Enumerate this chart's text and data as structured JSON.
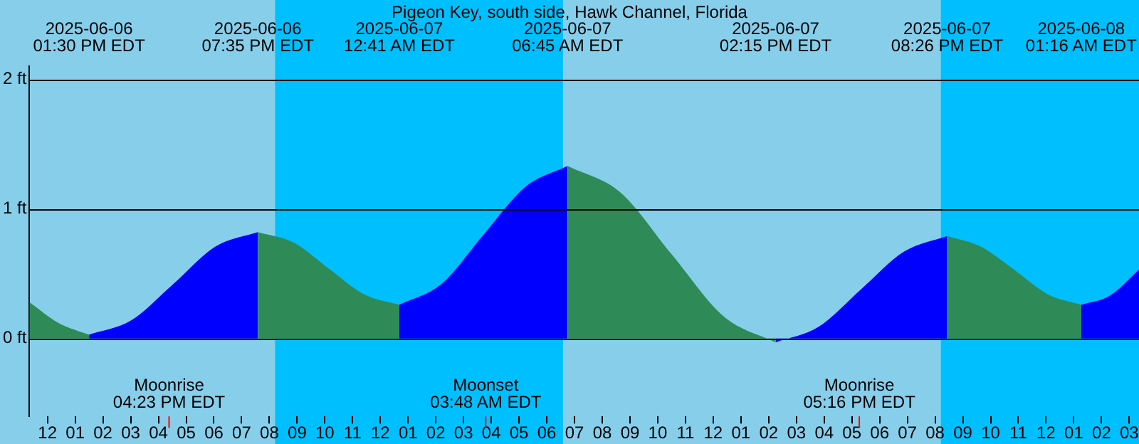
{
  "chart_data": {
    "type": "area",
    "title": "Pigeon Key, south side, Hawk Channel, Florida",
    "xlim": [
      "2025-06-06T11:21",
      "2025-06-08T03:21"
    ],
    "xticks": [
      {
        "value": "2025-06-06T12:00",
        "label": "12"
      },
      {
        "value": "2025-06-06T13:00",
        "label": "01"
      },
      {
        "value": "2025-06-06T14:00",
        "label": "02"
      },
      {
        "value": "2025-06-06T15:00",
        "label": "03"
      },
      {
        "value": "2025-06-06T16:00",
        "label": "04"
      },
      {
        "value": "2025-06-06T17:00",
        "label": "05"
      },
      {
        "value": "2025-06-06T18:00",
        "label": "06"
      },
      {
        "value": "2025-06-06T19:00",
        "label": "07"
      },
      {
        "value": "2025-06-06T20:00",
        "label": "08"
      },
      {
        "value": "2025-06-06T21:00",
        "label": "09"
      },
      {
        "value": "2025-06-06T22:00",
        "label": "10"
      },
      {
        "value": "2025-06-06T23:00",
        "label": "11"
      },
      {
        "value": "2025-06-07T00:00",
        "label": "12"
      },
      {
        "value": "2025-06-07T01:00",
        "label": "01"
      },
      {
        "value": "2025-06-07T02:00",
        "label": "02"
      },
      {
        "value": "2025-06-07T03:00",
        "label": "03"
      },
      {
        "value": "2025-06-07T04:00",
        "label": "04"
      },
      {
        "value": "2025-06-07T05:00",
        "label": "05"
      },
      {
        "value": "2025-06-07T06:00",
        "label": "06"
      },
      {
        "value": "2025-06-07T07:00",
        "label": "07"
      },
      {
        "value": "2025-06-07T08:00",
        "label": "08"
      },
      {
        "value": "2025-06-07T09:00",
        "label": "09"
      },
      {
        "value": "2025-06-07T10:00",
        "label": "10"
      },
      {
        "value": "2025-06-07T11:00",
        "label": "11"
      },
      {
        "value": "2025-06-07T12:00",
        "label": "12"
      },
      {
        "value": "2025-06-07T13:00",
        "label": "01"
      },
      {
        "value": "2025-06-07T14:00",
        "label": "02"
      },
      {
        "value": "2025-06-07T15:00",
        "label": "03"
      },
      {
        "value": "2025-06-07T16:00",
        "label": "04"
      },
      {
        "value": "2025-06-07T17:00",
        "label": "05"
      },
      {
        "value": "2025-06-07T18:00",
        "label": "06"
      },
      {
        "value": "2025-06-07T19:00",
        "label": "07"
      },
      {
        "value": "2025-06-07T20:00",
        "label": "08"
      },
      {
        "value": "2025-06-07T21:00",
        "label": "09"
      },
      {
        "value": "2025-06-07T22:00",
        "label": "10"
      },
      {
        "value": "2025-06-07T23:00",
        "label": "11"
      },
      {
        "value": "2025-06-08T00:00",
        "label": "12"
      },
      {
        "value": "2025-06-08T01:00",
        "label": "01"
      },
      {
        "value": "2025-06-08T02:00",
        "label": "02"
      },
      {
        "value": "2025-06-08T03:00",
        "label": "03"
      }
    ],
    "ylim": [
      -0.6,
      2.1
    ],
    "yticks": [
      {
        "value": 0,
        "label": "0 ft"
      },
      {
        "value": 1,
        "label": "1 ft"
      },
      {
        "value": 2,
        "label": "2 ft"
      }
    ],
    "grid": "y",
    "bands": [
      {
        "axis": "x",
        "from": "2025-06-06T11:21",
        "to": "2025-06-06T20:12",
        "color": "#87ceeb"
      },
      {
        "axis": "x",
        "from": "2025-06-06T20:12",
        "to": "2025-06-07T06:36",
        "color": "#00bfff"
      },
      {
        "axis": "x",
        "from": "2025-06-07T06:36",
        "to": "2025-06-07T20:12",
        "color": "#87ceeb"
      },
      {
        "axis": "x",
        "from": "2025-06-07T20:12",
        "to": "2025-06-08T03:21",
        "color": "#00bfff"
      }
    ],
    "ref_lines": [
      {
        "axis": "x",
        "value": "2025-06-06T16:23",
        "label": "Moonrise\n04:23 PM EDT",
        "color": "#ff0000"
      },
      {
        "axis": "x",
        "value": "2025-06-07T03:48",
        "label": "Moonset\n03:48 AM EDT",
        "color": "#ff0000"
      },
      {
        "axis": "x",
        "value": "2025-06-07T17:16",
        "label": "Moonrise\n05:16 PM EDT",
        "color": "#ff0000"
      }
    ],
    "series": [
      {
        "color": "#2e8b57",
        "x": [
          "2025-06-06T11:21",
          "2025-06-06T12:24",
          "2025-06-06T13:30"
        ],
        "values": [
          0.28,
          0.12,
          0.03
        ]
      },
      {
        "color": "#0000ff",
        "x": [
          "2025-06-06T13:30",
          "2025-06-06T15:01",
          "2025-06-06T16:32",
          "2025-06-06T18:04",
          "2025-06-06T19:35"
        ],
        "values": [
          0.03,
          0.14,
          0.42,
          0.71,
          0.82
        ]
      },
      {
        "color": "#2e8b57",
        "x": [
          "2025-06-06T19:35",
          "2025-06-06T20:52",
          "2025-06-06T22:08",
          "2025-06-06T23:25",
          "2025-06-07T00:41"
        ],
        "values": [
          0.82,
          0.74,
          0.54,
          0.34,
          0.26
        ]
      },
      {
        "color": "#0000ff",
        "x": [
          "2025-06-07T00:41",
          "2025-06-07T02:12",
          "2025-06-07T03:43",
          "2025-06-07T05:14",
          "2025-06-07T06:45"
        ],
        "values": [
          0.26,
          0.42,
          0.8,
          1.17,
          1.33
        ]
      },
      {
        "color": "#2e8b57",
        "x": [
          "2025-06-07T06:45",
          "2025-06-07T08:38",
          "2025-06-07T10:30",
          "2025-06-07T12:23",
          "2025-06-07T14:15"
        ],
        "values": [
          1.33,
          1.13,
          0.65,
          0.17,
          -0.03
        ]
      },
      {
        "color": "#0000ff",
        "x": [
          "2025-06-07T14:15",
          "2025-06-07T15:48",
          "2025-06-07T17:20",
          "2025-06-07T18:53",
          "2025-06-07T20:26"
        ],
        "values": [
          -0.03,
          0.09,
          0.38,
          0.67,
          0.79
        ]
      },
      {
        "color": "#2e8b57",
        "x": [
          "2025-06-07T20:26",
          "2025-06-07T21:38",
          "2025-06-07T22:51",
          "2025-06-08T00:04",
          "2025-06-08T01:16"
        ],
        "values": [
          0.79,
          0.71,
          0.53,
          0.34,
          0.26
        ]
      },
      {
        "color": "#0000ff",
        "x": [
          "2025-06-08T01:16",
          "2025-06-08T02:18",
          "2025-06-08T03:21"
        ],
        "values": [
          0.26,
          0.33,
          0.53
        ]
      }
    ],
    "annotations": [
      "2025-06-06\n01:30 PM EDT",
      "2025-06-06\n07:35 PM EDT",
      "2025-06-07\n12:41 AM EDT",
      "2025-06-07\n06:45 AM EDT",
      "2025-06-07\n02:15 PM EDT",
      "2025-06-07\n08:26 PM EDT",
      "2025-06-08\n01:16 AM EDT"
    ]
  }
}
